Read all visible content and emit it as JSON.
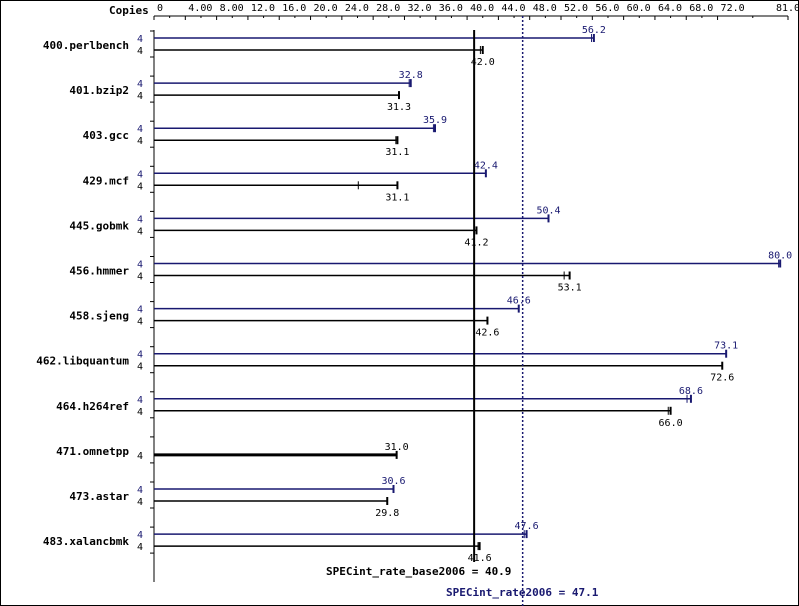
{
  "chart_data": {
    "type": "bar",
    "copies_label": "Copies",
    "axis": {
      "min": 0,
      "max": 81.0,
      "ticks": [
        0,
        4.0,
        8.0,
        12.0,
        16.0,
        20.0,
        24.0,
        28.0,
        32.0,
        36.0,
        40.0,
        44.0,
        48.0,
        52.0,
        56.0,
        60.0,
        64.0,
        68.0,
        72.0,
        81.0
      ],
      "tick_labels": [
        "0",
        "4.00",
        "8.00",
        "12.0",
        "16.0",
        "20.0",
        "24.0",
        "28.0",
        "32.0",
        "36.0",
        "40.0",
        "44.0",
        "48.0",
        "52.0",
        "56.0",
        "60.0",
        "64.0",
        "68.0",
        "72.0",
        "81.0"
      ]
    },
    "series": [
      {
        "name": "SPECint_rate2006",
        "color": "#191970"
      },
      {
        "name": "SPECint_rate_base2006",
        "color": "#000000"
      }
    ],
    "benchmarks": [
      {
        "name": "400.perlbench",
        "peak": {
          "copies": "4",
          "value": 56.2,
          "label": "56.2",
          "range": [
            55.9,
            56.2
          ]
        },
        "base": {
          "copies": "4",
          "value": 42.0,
          "label": "42.0",
          "range": [
            41.7,
            42.0
          ]
        }
      },
      {
        "name": "401.bzip2",
        "peak": {
          "copies": "4",
          "value": 32.8,
          "label": "32.8",
          "range": [
            32.6,
            32.8
          ]
        },
        "base": {
          "copies": "4",
          "value": 31.3,
          "label": "31.3"
        }
      },
      {
        "name": "403.gcc",
        "peak": {
          "copies": "4",
          "value": 35.9,
          "label": "35.9",
          "range": [
            35.7,
            35.9
          ]
        },
        "base": {
          "copies": "4",
          "value": 31.1,
          "label": "31.1",
          "range": [
            30.9,
            31.1
          ]
        }
      },
      {
        "name": "429.mcf",
        "peak": {
          "copies": "4",
          "value": 42.4,
          "label": "42.4"
        },
        "base": {
          "copies": "4",
          "value": 31.1,
          "label": "31.1",
          "range": [
            26.1,
            31.1
          ]
        }
      },
      {
        "name": "445.gobmk",
        "peak": {
          "copies": "4",
          "value": 50.4,
          "label": "50.4"
        },
        "base": {
          "copies": "4",
          "value": 41.2,
          "label": "41.2"
        }
      },
      {
        "name": "456.hmmer",
        "peak": {
          "copies": "4",
          "value": 80.0,
          "label": "80.0",
          "range": [
            79.8,
            80.0
          ]
        },
        "base": {
          "copies": "4",
          "value": 53.1,
          "label": "53.1",
          "range": [
            52.4,
            53.1
          ]
        }
      },
      {
        "name": "458.sjeng",
        "peak": {
          "copies": "4",
          "value": 46.6,
          "label": "46.6"
        },
        "base": {
          "copies": "4",
          "value": 42.6,
          "label": "42.6"
        }
      },
      {
        "name": "462.libquantum",
        "peak": {
          "copies": "4",
          "value": 73.1,
          "label": "73.1"
        },
        "base": {
          "copies": "4",
          "value": 72.6,
          "label": "72.6"
        }
      },
      {
        "name": "464.h264ref",
        "peak": {
          "copies": "4",
          "value": 68.6,
          "label": "68.6",
          "range": [
            68.1,
            68.6
          ]
        },
        "base": {
          "copies": "4",
          "value": 66.0,
          "label": "66.0",
          "range": [
            65.7,
            66.0
          ]
        }
      },
      {
        "name": "471.omnetpp",
        "base": {
          "copies": "4",
          "value": 31.0,
          "label": "31.0"
        }
      },
      {
        "name": "473.astar",
        "peak": {
          "copies": "4",
          "value": 30.6,
          "label": "30.6"
        },
        "base": {
          "copies": "4",
          "value": 29.8,
          "label": "29.8"
        }
      },
      {
        "name": "483.xalancbmk",
        "peak": {
          "copies": "4",
          "value": 47.6,
          "label": "47.6",
          "range": [
            47.3,
            47.6
          ]
        },
        "base": {
          "copies": "4",
          "value": 41.6,
          "label": "41.6",
          "range": [
            41.4,
            41.6
          ]
        }
      }
    ],
    "summary": {
      "base": {
        "value": 40.9,
        "label": "SPECint_rate_base2006 = 40.9"
      },
      "peak": {
        "value": 47.1,
        "label": "SPECint_rate2006 = 47.1"
      }
    }
  }
}
